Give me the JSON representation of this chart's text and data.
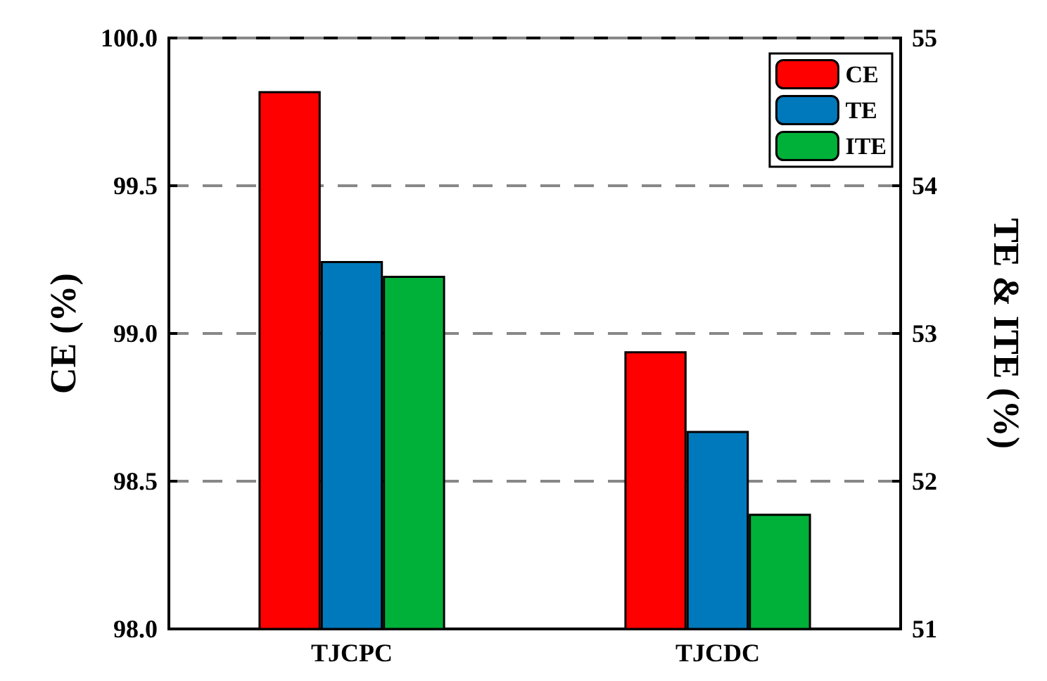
{
  "chart_data": {
    "type": "bar",
    "categories": [
      "TJCPC",
      "TJCDC"
    ],
    "series": [
      {
        "name": "CE",
        "color": "#ff0000",
        "values": [
          99.82,
          98.94
        ]
      },
      {
        "name": "TE",
        "color": "#0079bc",
        "values": [
          53.49,
          52.34
        ],
        "axis": "y2"
      },
      {
        "name": "ITE",
        "color": "#00b139",
        "values": [
          53.39,
          51.78
        ],
        "axis": "y2"
      }
    ],
    "ylabel": "CE (%)",
    "y2label": "TE & ITE (%)",
    "ylim": [
      98,
      100
    ],
    "yticks": [
      {
        "value": 98,
        "label": "98.0"
      },
      {
        "value": 98.5,
        "label": "98.5"
      },
      {
        "value": 99,
        "label": "99.0"
      },
      {
        "value": 99.5,
        "label": "99.5"
      },
      {
        "value": 100,
        "label": "100.0"
      }
    ],
    "y2lim": [
      51,
      55
    ],
    "y2ticks": [
      51,
      52,
      53,
      54,
      55
    ],
    "grid": "y",
    "legend": "top right"
  }
}
